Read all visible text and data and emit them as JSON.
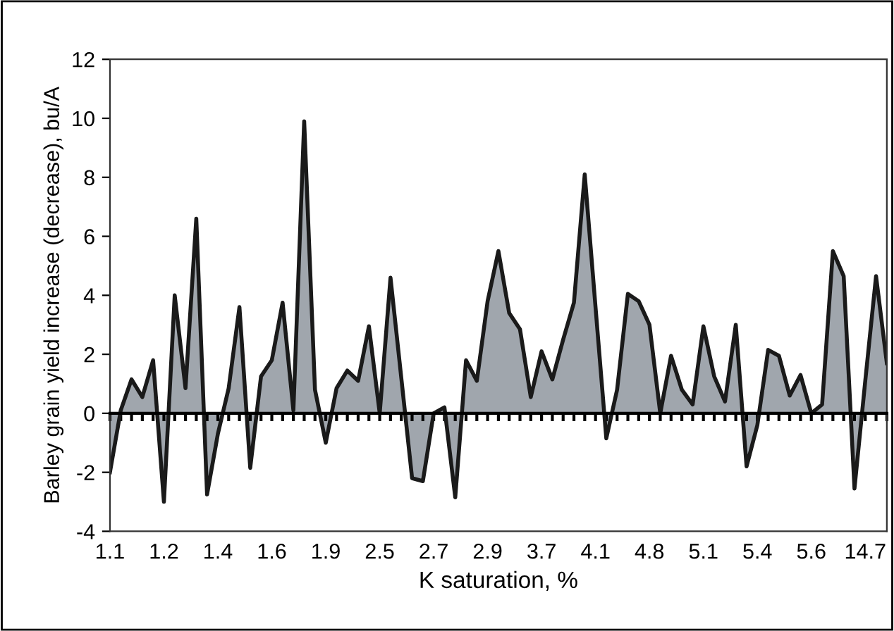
{
  "chart_data": {
    "type": "area",
    "xlabel": "K saturation, %",
    "ylabel": "Barley grain yield increase (decrease), bu/A",
    "categories": [
      "1.1",
      null,
      null,
      null,
      null,
      "1.2",
      null,
      null,
      null,
      null,
      "1.4",
      null,
      null,
      null,
      null,
      "1.6",
      null,
      null,
      null,
      null,
      "1.9",
      null,
      null,
      null,
      null,
      "2.5",
      null,
      null,
      null,
      null,
      "2.7",
      null,
      null,
      null,
      null,
      "2.9",
      null,
      null,
      null,
      null,
      "3.7",
      null,
      null,
      null,
      null,
      "4.1",
      null,
      null,
      null,
      null,
      "4.8",
      null,
      null,
      null,
      null,
      "5.1",
      null,
      null,
      null,
      null,
      "5.4",
      null,
      null,
      null,
      null,
      "5.6",
      null,
      null,
      null,
      null,
      "14.7",
      null,
      null
    ],
    "series": [
      {
        "color": "#a0a6ad",
        "values": [
          -2.0,
          0.1,
          1.15,
          0.55,
          1.8,
          -3.0,
          4.0,
          0.85,
          6.6,
          -2.75,
          -0.7,
          0.85,
          3.6,
          -1.85,
          1.25,
          1.8,
          3.75,
          0.1,
          9.9,
          0.8,
          -1.0,
          0.85,
          1.45,
          1.1,
          2.95,
          0.0,
          4.6,
          1.2,
          -2.2,
          -2.3,
          0.0,
          0.2,
          -2.85,
          1.8,
          1.1,
          3.8,
          5.5,
          3.4,
          2.85,
          0.55,
          2.1,
          1.15,
          2.5,
          3.75,
          8.1,
          3.6,
          -0.85,
          0.8,
          4.05,
          3.8,
          3.0,
          0.0,
          1.95,
          0.8,
          0.3,
          2.95,
          1.25,
          0.4,
          3.0,
          -1.8,
          -0.4,
          2.15,
          1.95,
          0.6,
          1.3,
          0.0,
          0.3,
          5.5,
          4.65,
          -2.55,
          1.1,
          4.65,
          1.7
        ]
      }
    ],
    "ylim": [
      -4,
      12
    ],
    "yticks": [
      -4,
      -2,
      0,
      2,
      4,
      6,
      8,
      10,
      12
    ]
  }
}
